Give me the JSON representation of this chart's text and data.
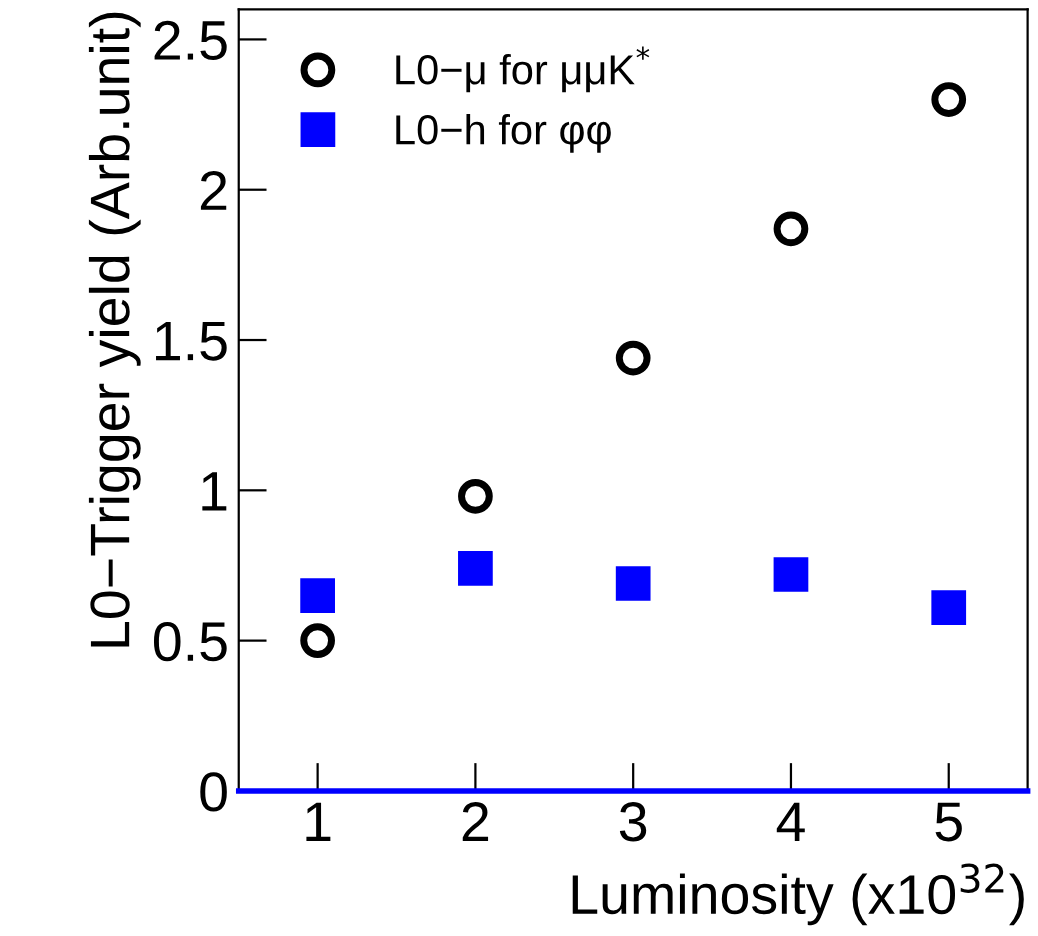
{
  "chart_data": {
    "type": "scatter",
    "xlabel": "Luminosity (x10$^{32}$)",
    "ylabel": "L0−Trigger yield (Arb.unit)",
    "x": [
      1,
      2,
      3,
      4,
      5
    ],
    "series": [
      {
        "name": "L0−μ for μμK$^{*}$",
        "color": "#000000",
        "marker": "circle",
        "values": [
          0.5,
          0.98,
          1.44,
          1.87,
          2.3
        ]
      },
      {
        "name": "L0−h for φφ",
        "color": "#0000ff",
        "marker": "square",
        "values": [
          0.65,
          0.74,
          0.69,
          0.72,
          0.61
        ],
        "errors": [
          0.03,
          0.04,
          0.05,
          0.05,
          0.03
        ]
      }
    ],
    "xlim": [
      0.5,
      5.5
    ],
    "xticks": [
      1,
      2,
      3,
      4,
      5
    ],
    "ylim": [
      0,
      2.6
    ],
    "yticks": [
      0,
      0.5,
      1,
      1.5,
      2,
      2.5
    ],
    "grid": false,
    "legend": "top left"
  }
}
